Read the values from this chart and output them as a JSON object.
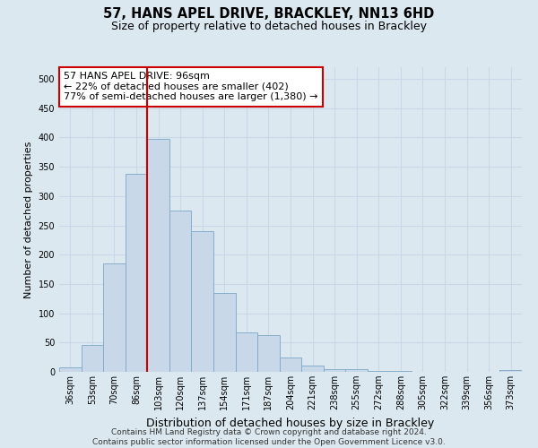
{
  "title_line1": "57, HANS APEL DRIVE, BRACKLEY, NN13 6HD",
  "title_line2": "Size of property relative to detached houses in Brackley",
  "xlabel": "Distribution of detached houses by size in Brackley",
  "ylabel": "Number of detached properties",
  "categories": [
    "36sqm",
    "53sqm",
    "70sqm",
    "86sqm",
    "103sqm",
    "120sqm",
    "137sqm",
    "154sqm",
    "171sqm",
    "187sqm",
    "204sqm",
    "221sqm",
    "238sqm",
    "255sqm",
    "272sqm",
    "288sqm",
    "305sqm",
    "322sqm",
    "339sqm",
    "356sqm",
    "373sqm"
  ],
  "values": [
    8,
    46,
    185,
    338,
    398,
    275,
    240,
    135,
    68,
    62,
    25,
    11,
    5,
    4,
    2,
    1,
    0,
    0,
    0,
    0,
    3
  ],
  "bar_color": "#c8d8e8",
  "bar_edge_color": "#7aa8c8",
  "highlight_color": "#cc0000",
  "annotation_text": "57 HANS APEL DRIVE: 96sqm\n← 22% of detached houses are smaller (402)\n77% of semi-detached houses are larger (1,380) →",
  "annotation_box_color": "#ffffff",
  "annotation_box_edge_color": "#cc0000",
  "ylim": [
    0,
    520
  ],
  "yticks": [
    0,
    50,
    100,
    150,
    200,
    250,
    300,
    350,
    400,
    450,
    500
  ],
  "grid_color": "#c8d8e8",
  "background_color": "#dce8f0",
  "footer_line1": "Contains HM Land Registry data © Crown copyright and database right 2024.",
  "footer_line2": "Contains public sector information licensed under the Open Government Licence v3.0.",
  "title_fontsize": 10.5,
  "subtitle_fontsize": 9,
  "ylabel_fontsize": 8,
  "xlabel_fontsize": 9,
  "tick_fontsize": 7,
  "annotation_fontsize": 8,
  "footer_fontsize": 6.5
}
